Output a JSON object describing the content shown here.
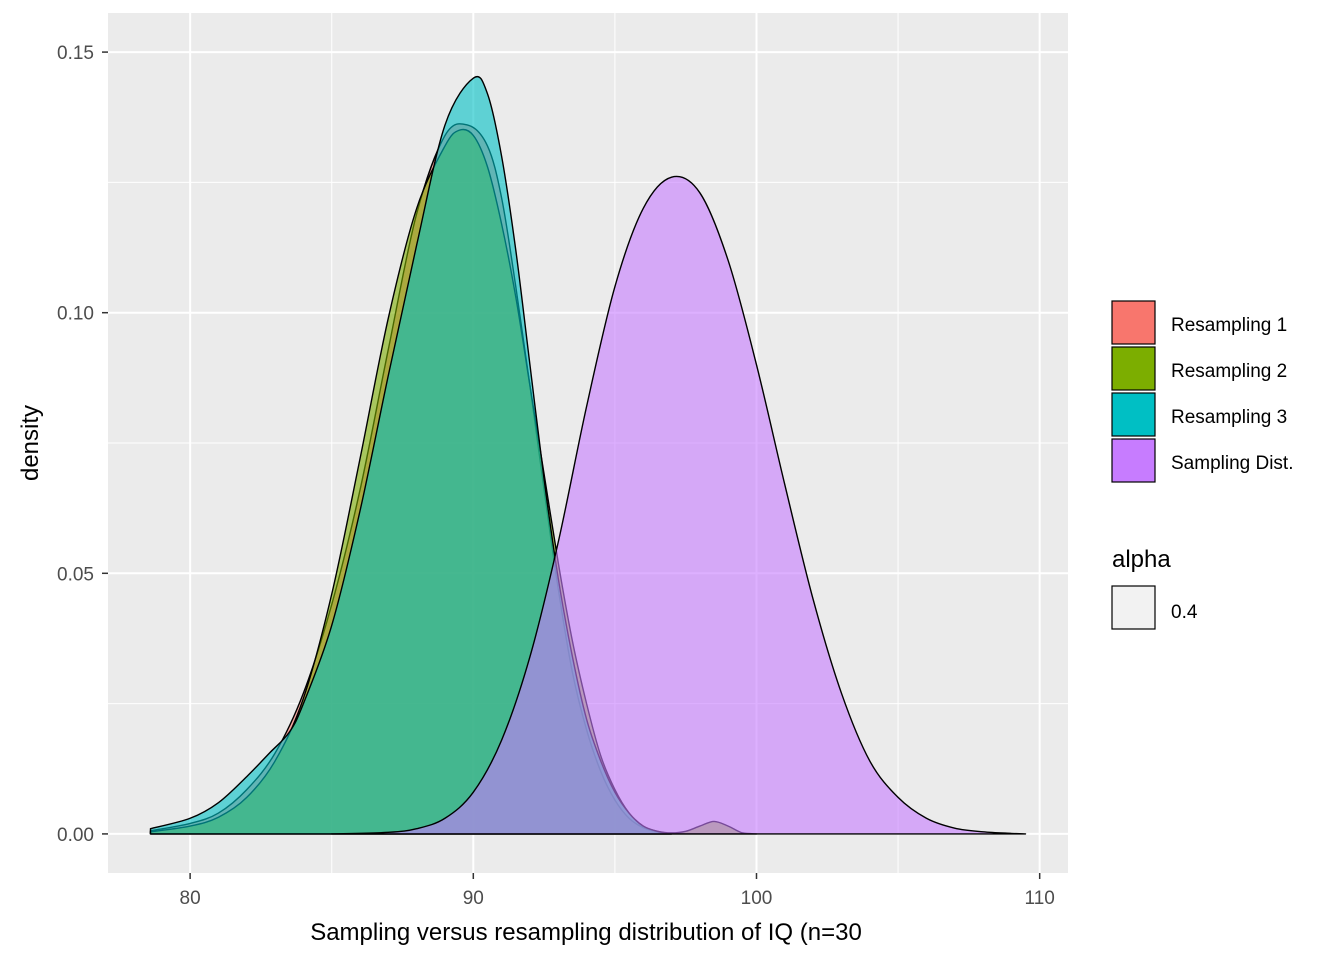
{
  "chart_data": {
    "type": "area",
    "xlabel": "Sampling versus resampling distribution of IQ (n=30",
    "ylabel": "density",
    "xlim": [
      77.1,
      111.0
    ],
    "ylim": [
      -0.0075,
      0.1575
    ],
    "x_ticks": [
      80,
      90,
      100,
      110
    ],
    "x_tick_labels": [
      "80",
      "90",
      "100",
      "110"
    ],
    "y_ticks": [
      0.0,
      0.05,
      0.1,
      0.15
    ],
    "y_tick_labels": [
      "0.00",
      "0.05",
      "0.10",
      "0.15"
    ],
    "grid": true,
    "legend_position": "right",
    "legend_fill_title": "",
    "legend_alpha_title": "alpha",
    "legend_alpha_value": "0.4",
    "series": [
      {
        "name": "Resampling 1",
        "color": "#F8766D",
        "points": [
          [
            78.6,
            0.0006
          ],
          [
            80.0,
            0.002
          ],
          [
            81.0,
            0.004
          ],
          [
            82.0,
            0.0085
          ],
          [
            83.0,
            0.0155
          ],
          [
            84.0,
            0.027
          ],
          [
            85.0,
            0.044
          ],
          [
            86.0,
            0.066
          ],
          [
            87.0,
            0.093
          ],
          [
            88.0,
            0.119
          ],
          [
            89.0,
            0.134
          ],
          [
            89.8,
            0.136
          ],
          [
            90.5,
            0.132
          ],
          [
            91.0,
            0.122
          ],
          [
            91.5,
            0.105
          ],
          [
            92.0,
            0.086
          ],
          [
            92.5,
            0.066
          ],
          [
            93.0,
            0.047
          ],
          [
            93.5,
            0.031
          ],
          [
            94.0,
            0.02
          ],
          [
            94.5,
            0.012
          ],
          [
            95.0,
            0.0065
          ],
          [
            95.5,
            0.003
          ],
          [
            96.0,
            0.0012
          ],
          [
            96.5,
            0.0004
          ],
          [
            97.0,
            0.0
          ]
        ]
      },
      {
        "name": "Resampling 2",
        "color": "#7CAE00",
        "points": [
          [
            78.6,
            0.0004
          ],
          [
            80.0,
            0.0015
          ],
          [
            81.0,
            0.0032
          ],
          [
            82.0,
            0.007
          ],
          [
            83.0,
            0.014
          ],
          [
            84.0,
            0.026
          ],
          [
            85.0,
            0.046
          ],
          [
            86.0,
            0.072
          ],
          [
            87.0,
            0.099
          ],
          [
            88.0,
            0.12
          ],
          [
            89.0,
            0.132
          ],
          [
            89.5,
            0.135
          ],
          [
            90.0,
            0.134
          ],
          [
            90.5,
            0.128
          ],
          [
            91.0,
            0.117
          ],
          [
            91.5,
            0.103
          ],
          [
            92.0,
            0.086
          ],
          [
            92.5,
            0.069
          ],
          [
            93.0,
            0.052
          ],
          [
            93.5,
            0.037
          ],
          [
            94.0,
            0.025
          ],
          [
            94.5,
            0.015
          ],
          [
            95.0,
            0.0085
          ],
          [
            95.5,
            0.004
          ],
          [
            96.0,
            0.0015
          ],
          [
            96.5,
            0.0005
          ],
          [
            97.0,
            0.0002
          ],
          [
            97.5,
            0.0005
          ],
          [
            98.0,
            0.0015
          ],
          [
            98.5,
            0.0024
          ],
          [
            99.0,
            0.0015
          ],
          [
            99.5,
            0.0002
          ],
          [
            100.0,
            0.0
          ]
        ]
      },
      {
        "name": "Resampling 3",
        "color": "#00BFC4",
        "points": [
          [
            78.6,
            0.001
          ],
          [
            80.0,
            0.003
          ],
          [
            81.0,
            0.006
          ],
          [
            82.0,
            0.011
          ],
          [
            82.8,
            0.0155
          ],
          [
            83.5,
            0.0195
          ],
          [
            84.0,
            0.025
          ],
          [
            85.0,
            0.04
          ],
          [
            86.0,
            0.062
          ],
          [
            87.0,
            0.088
          ],
          [
            88.0,
            0.113
          ],
          [
            89.0,
            0.136
          ],
          [
            90.0,
            0.145
          ],
          [
            90.5,
            0.142
          ],
          [
            91.0,
            0.13
          ],
          [
            91.5,
            0.112
          ],
          [
            92.0,
            0.09
          ],
          [
            92.5,
            0.068
          ],
          [
            93.0,
            0.049
          ],
          [
            93.5,
            0.034
          ],
          [
            94.0,
            0.022
          ],
          [
            94.5,
            0.014
          ],
          [
            95.0,
            0.008
          ],
          [
            95.5,
            0.004
          ],
          [
            96.0,
            0.0015
          ],
          [
            96.5,
            0.0005
          ],
          [
            97.0,
            0.0
          ]
        ]
      },
      {
        "name": "Sampling Dist.",
        "color": "#C77CFF",
        "points": [
          [
            85.0,
            0.0
          ],
          [
            87.0,
            0.0003
          ],
          [
            88.0,
            0.001
          ],
          [
            89.0,
            0.003
          ],
          [
            90.0,
            0.008
          ],
          [
            91.0,
            0.018
          ],
          [
            92.0,
            0.034
          ],
          [
            93.0,
            0.056
          ],
          [
            94.0,
            0.082
          ],
          [
            95.0,
            0.105
          ],
          [
            96.0,
            0.12
          ],
          [
            97.0,
            0.126
          ],
          [
            98.0,
            0.123
          ],
          [
            99.0,
            0.11
          ],
          [
            100.0,
            0.09
          ],
          [
            101.0,
            0.067
          ],
          [
            102.0,
            0.045
          ],
          [
            103.0,
            0.027
          ],
          [
            104.0,
            0.014
          ],
          [
            105.0,
            0.007
          ],
          [
            106.0,
            0.003
          ],
          [
            107.0,
            0.0011
          ],
          [
            108.0,
            0.0004
          ],
          [
            109.0,
            0.0001
          ],
          [
            109.5,
            0.0
          ]
        ]
      }
    ]
  }
}
